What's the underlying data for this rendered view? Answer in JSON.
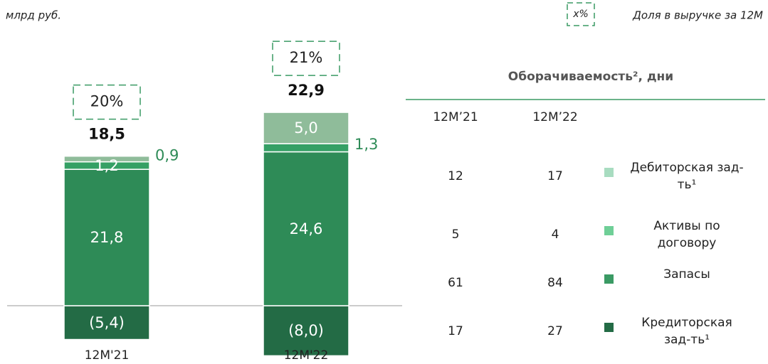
{
  "chart_data": {
    "type": "stacked_bar",
    "unit": "млрд руб.",
    "share_key": "x%",
    "share_key_label": "Доля в выручке за 12М",
    "categories": [
      "12M'21",
      "12M'22"
    ],
    "series": [
      {
        "name": "Дебиторская зад-ть¹",
        "color": "#8fbc9a",
        "legend_color": "#a8dcc0",
        "values": [
          0.9,
          5.0
        ],
        "value_labels": [
          "0,9",
          "5,0"
        ],
        "days": [
          12,
          17
        ]
      },
      {
        "name": "Активы по договору",
        "color": "#35a065",
        "legend_color": "#6fcf97",
        "values": [
          1.2,
          1.3
        ],
        "value_labels": [
          "1,2",
          "1,3"
        ],
        "days": [
          5,
          4
        ]
      },
      {
        "name": "Запасы",
        "color": "#2e8b57",
        "legend_color": "#3a9a64",
        "values": [
          21.8,
          24.6
        ],
        "value_labels": [
          "21,8",
          "24,6"
        ],
        "days": [
          61,
          84
        ]
      },
      {
        "name": "Кредиторская зад-ть¹",
        "color": "#236b45",
        "legend_color": "#236b45",
        "values": [
          -5.4,
          -8.0
        ],
        "value_labels": [
          "(5,4)",
          "(8,0)"
        ],
        "days": [
          17,
          27
        ]
      }
    ],
    "totals": {
      "values": [
        18.5,
        22.9
      ],
      "value_labels": [
        "18,5",
        "22,9"
      ]
    },
    "shares": {
      "values": [
        20,
        21
      ],
      "value_labels": [
        "20%",
        "21%"
      ]
    },
    "turnover_title": "Оборачиваемость², дни",
    "turnover_columns": [
      "12M’21",
      "12M’22"
    ]
  }
}
